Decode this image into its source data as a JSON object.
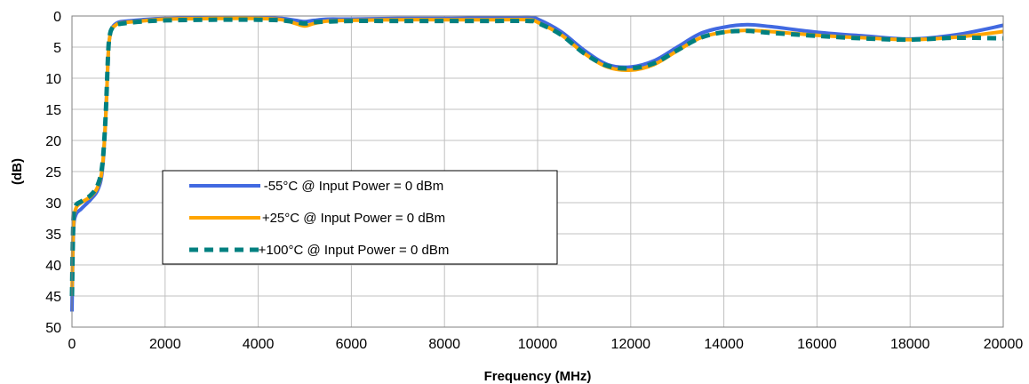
{
  "chart_data": {
    "type": "line",
    "xlabel": "Frequency (MHz)",
    "ylabel": "(dB)",
    "xlim": [
      0,
      20000
    ],
    "ylim": [
      0,
      50
    ],
    "y_inverted": true,
    "xticks": [
      "0",
      "2000",
      "4000",
      "6000",
      "8000",
      "10000",
      "12000",
      "14000",
      "16000",
      "18000",
      "20000"
    ],
    "yticks": [
      "0",
      "5",
      "10",
      "15",
      "20",
      "25",
      "30",
      "35",
      "40",
      "45",
      "50"
    ],
    "grid": true,
    "legend_position": "center-left",
    "series": [
      {
        "name": "-55°C @  Input Power = 0 dBm",
        "color": "#4169E1",
        "style": "solid",
        "x": [
          0,
          30,
          80,
          200,
          400,
          550,
          650,
          720,
          780,
          820,
          860,
          900,
          1000,
          1200,
          1500,
          2000,
          3000,
          4000,
          4500,
          4800,
          5000,
          5200,
          5500,
          6000,
          7000,
          8000,
          9000,
          9800,
          10000,
          10500,
          11000,
          11500,
          12000,
          12500,
          13000,
          13500,
          14000,
          14500,
          15000,
          16000,
          17000,
          18000,
          19000,
          20000
        ],
        "y": [
          47.5,
          35,
          32,
          31,
          29.5,
          28,
          25,
          17,
          6,
          3,
          2,
          1.5,
          1,
          0.8,
          0.6,
          0.4,
          0.3,
          0.3,
          0.4,
          0.7,
          0.9,
          0.7,
          0.5,
          0.5,
          0.4,
          0.4,
          0.3,
          0.2,
          0.5,
          2.5,
          5.5,
          7.8,
          8.2,
          7.2,
          5,
          2.8,
          1.8,
          1.4,
          1.7,
          2.6,
          3.2,
          3.7,
          3,
          1.5
        ]
      },
      {
        "name": "+25°C @  Input Power = 0 dBm",
        "color": "#FFA500",
        "style": "solid",
        "x": [
          0,
          30,
          80,
          200,
          400,
          550,
          650,
          720,
          780,
          820,
          860,
          900,
          1000,
          1200,
          1500,
          2000,
          3000,
          4000,
          4500,
          4800,
          5000,
          5200,
          5500,
          6000,
          7000,
          8000,
          9000,
          9800,
          10000,
          10500,
          11000,
          11500,
          12000,
          12500,
          13000,
          13500,
          14000,
          14500,
          15000,
          16000,
          17000,
          18000,
          19000,
          20000
        ],
        "y": [
          45,
          34,
          31,
          30,
          29,
          27.5,
          24.5,
          17,
          6,
          3,
          2,
          1.7,
          1.2,
          1,
          0.8,
          0.5,
          0.4,
          0.4,
          0.6,
          1.2,
          1.6,
          1.2,
          0.8,
          0.7,
          0.6,
          0.6,
          0.6,
          0.6,
          1,
          3,
          6,
          8.2,
          8.7,
          7.8,
          5.6,
          3.5,
          2.6,
          2.3,
          2.5,
          3.1,
          3.5,
          3.8,
          3.4,
          2.5
        ]
      },
      {
        "name": "+100°C @  Input Power = 0 dBm",
        "color": "#008080",
        "style": "dashed",
        "x": [
          0,
          30,
          80,
          200,
          400,
          550,
          650,
          720,
          780,
          820,
          860,
          900,
          1000,
          1200,
          1500,
          2000,
          3000,
          4000,
          4500,
          4800,
          5000,
          5200,
          5500,
          6000,
          7000,
          8000,
          9000,
          9800,
          10000,
          10500,
          11000,
          11500,
          12000,
          12500,
          13000,
          13500,
          14000,
          14500,
          15000,
          16000,
          17000,
          18000,
          19000,
          20000
        ],
        "y": [
          45,
          33,
          30.5,
          29.8,
          28.8,
          27.2,
          24,
          16.5,
          5.5,
          2.8,
          2,
          1.6,
          1.3,
          1.1,
          0.9,
          0.7,
          0.6,
          0.6,
          0.7,
          1,
          1.2,
          1,
          0.9,
          0.8,
          0.8,
          0.8,
          0.8,
          0.8,
          1.1,
          3,
          6,
          8,
          8.4,
          7.6,
          5.5,
          3.5,
          2.6,
          2.4,
          2.7,
          3.2,
          3.6,
          3.8,
          3.5,
          3.6
        ]
      }
    ]
  }
}
